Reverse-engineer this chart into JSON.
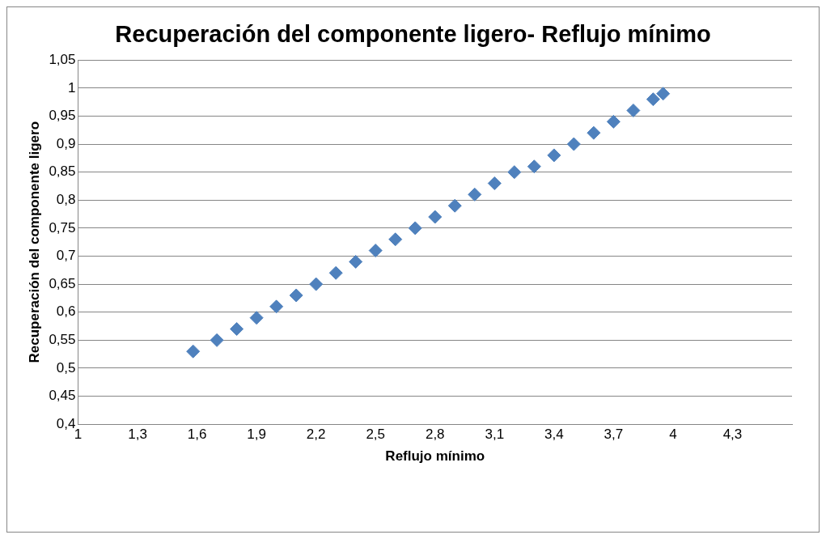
{
  "chart_data": {
    "type": "scatter",
    "title": "Recuperación del componente ligero- Reflujo mínimo",
    "xlabel": "Reflujo mínimo",
    "ylabel": "Recuperación del componente ligero",
    "x": [
      1.58,
      1.7,
      1.8,
      1.9,
      2.0,
      2.1,
      2.2,
      2.3,
      2.4,
      2.5,
      2.6,
      2.7,
      2.8,
      2.9,
      3.0,
      3.1,
      3.2,
      3.3,
      3.4,
      3.5,
      3.6,
      3.7,
      3.8,
      3.9,
      3.95
    ],
    "series": [
      {
        "color": "#4f81bd",
        "values": [
          0.53,
          0.55,
          0.57,
          0.59,
          0.61,
          0.63,
          0.65,
          0.67,
          0.69,
          0.71,
          0.73,
          0.75,
          0.77,
          0.79,
          0.81,
          0.83,
          0.85,
          0.86,
          0.88,
          0.9,
          0.92,
          0.94,
          0.96,
          0.98,
          0.99
        ]
      }
    ],
    "xlim": [
      1,
      4.6
    ],
    "xticks": [
      1,
      {
        "value": 1.3,
        "label": "1,3"
      },
      {
        "value": 1.6,
        "label": "1,6"
      },
      {
        "value": 1.9,
        "label": "1,9"
      },
      {
        "value": 2.2,
        "label": "2,2"
      },
      {
        "value": 2.5,
        "label": "2,5"
      },
      {
        "value": 2.8,
        "label": "2,8"
      },
      {
        "value": 3.1,
        "label": "3,1"
      },
      {
        "value": 3.4,
        "label": "3,4"
      },
      {
        "value": 3.7,
        "label": "3,7"
      },
      4,
      {
        "value": 4.3,
        "label": "4,3"
      }
    ],
    "ylim": [
      0.4,
      1.05
    ],
    "yticks": [
      {
        "value": 0.4,
        "label": "0,4"
      },
      {
        "value": 0.45,
        "label": "0,45"
      },
      {
        "value": 0.5,
        "label": "0,5"
      },
      {
        "value": 0.55,
        "label": "0,55"
      },
      {
        "value": 0.6,
        "label": "0,6"
      },
      {
        "value": 0.65,
        "label": "0,65"
      },
      {
        "value": 0.7,
        "label": "0,7"
      },
      {
        "value": 0.75,
        "label": "0,75"
      },
      {
        "value": 0.8,
        "label": "0,8"
      },
      {
        "value": 0.85,
        "label": "0,85"
      },
      {
        "value": 0.9,
        "label": "0,9"
      },
      {
        "value": 0.95,
        "label": "0,95"
      },
      1,
      {
        "value": 1.05,
        "label": "1,05"
      }
    ],
    "grid": "y",
    "legend": false,
    "marker": "diamond"
  }
}
